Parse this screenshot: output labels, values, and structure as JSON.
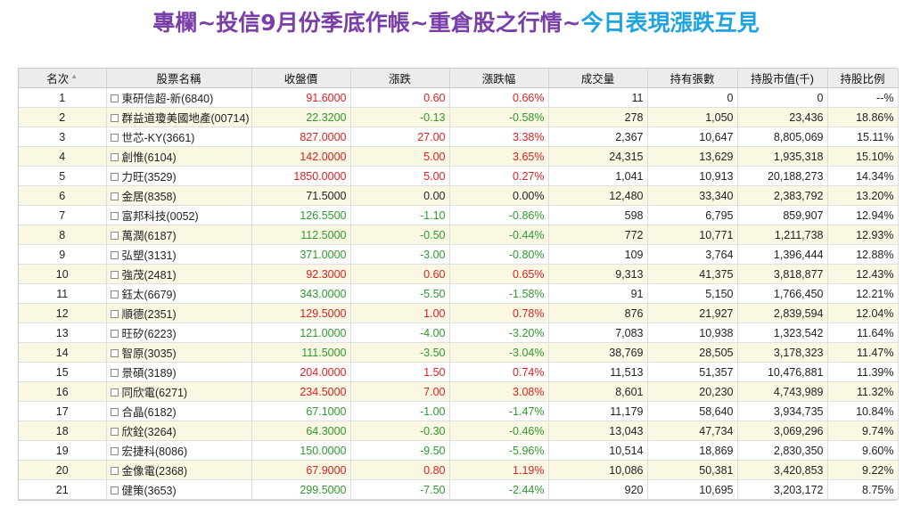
{
  "title": {
    "part1": "專欄~投信9月份季底作帳~重倉股之行情~",
    "part2": "今日表現漲跌互見"
  },
  "colors": {
    "title_purple": "#7a3ea8",
    "title_blue": "#1fa3e0",
    "up": "#e02020",
    "down": "#2e9a2e",
    "row_stripe": "#faf7e3"
  },
  "table": {
    "headers": [
      "名次",
      "股票名稱",
      "收盤價",
      "漲跌",
      "漲跌幅",
      "成交量",
      "持有張數",
      "持股市值(千)",
      "持股比例"
    ],
    "rows": [
      {
        "rank": "1",
        "name": "東研信超-新(6840)",
        "close": "91.6000",
        "change": "0.60",
        "pct": "0.66%",
        "volume": "11",
        "shares": "0",
        "value": "0",
        "ratio": "--%",
        "dir": "up"
      },
      {
        "rank": "2",
        "name": "群益道瓊美國地產(00714)",
        "close": "22.3200",
        "change": "-0.13",
        "pct": "-0.58%",
        "volume": "278",
        "shares": "1,050",
        "value": "23,436",
        "ratio": "18.86%",
        "dir": "down"
      },
      {
        "rank": "3",
        "name": "世芯-KY(3661)",
        "close": "827.0000",
        "change": "27.00",
        "pct": "3.38%",
        "volume": "2,367",
        "shares": "10,647",
        "value": "8,805,069",
        "ratio": "15.11%",
        "dir": "up"
      },
      {
        "rank": "4",
        "name": "創惟(6104)",
        "close": "142.0000",
        "change": "5.00",
        "pct": "3.65%",
        "volume": "24,315",
        "shares": "13,629",
        "value": "1,935,318",
        "ratio": "15.10%",
        "dir": "up"
      },
      {
        "rank": "5",
        "name": "力旺(3529)",
        "close": "1850.0000",
        "change": "5.00",
        "pct": "0.27%",
        "volume": "1,041",
        "shares": "10,913",
        "value": "20,188,273",
        "ratio": "14.34%",
        "dir": "up"
      },
      {
        "rank": "6",
        "name": "金居(8358)",
        "close": "71.5000",
        "change": "0.00",
        "pct": "0.00%",
        "volume": "12,480",
        "shares": "33,340",
        "value": "2,383,792",
        "ratio": "13.20%",
        "dir": "flat"
      },
      {
        "rank": "7",
        "name": "富邦科技(0052)",
        "close": "126.5500",
        "change": "-1.10",
        "pct": "-0.86%",
        "volume": "598",
        "shares": "6,795",
        "value": "859,907",
        "ratio": "12.94%",
        "dir": "down"
      },
      {
        "rank": "8",
        "name": "萬潤(6187)",
        "close": "112.5000",
        "change": "-0.50",
        "pct": "-0.44%",
        "volume": "772",
        "shares": "10,771",
        "value": "1,211,738",
        "ratio": "12.93%",
        "dir": "down"
      },
      {
        "rank": "9",
        "name": "弘塑(3131)",
        "close": "371.0000",
        "change": "-3.00",
        "pct": "-0.80%",
        "volume": "109",
        "shares": "3,764",
        "value": "1,396,444",
        "ratio": "12.88%",
        "dir": "down"
      },
      {
        "rank": "10",
        "name": "強茂(2481)",
        "close": "92.3000",
        "change": "0.60",
        "pct": "0.65%",
        "volume": "9,313",
        "shares": "41,375",
        "value": "3,818,877",
        "ratio": "12.43%",
        "dir": "up"
      },
      {
        "rank": "11",
        "name": "鈺太(6679)",
        "close": "343.0000",
        "change": "-5.50",
        "pct": "-1.58%",
        "volume": "91",
        "shares": "5,150",
        "value": "1,766,450",
        "ratio": "12.21%",
        "dir": "down"
      },
      {
        "rank": "12",
        "name": "順德(2351)",
        "close": "129.5000",
        "change": "1.00",
        "pct": "0.78%",
        "volume": "876",
        "shares": "21,927",
        "value": "2,839,594",
        "ratio": "12.04%",
        "dir": "up"
      },
      {
        "rank": "13",
        "name": "旺矽(6223)",
        "close": "121.0000",
        "change": "-4.00",
        "pct": "-3.20%",
        "volume": "7,083",
        "shares": "10,938",
        "value": "1,323,542",
        "ratio": "11.64%",
        "dir": "down"
      },
      {
        "rank": "14",
        "name": "智原(3035)",
        "close": "111.5000",
        "change": "-3.50",
        "pct": "-3.04%",
        "volume": "38,769",
        "shares": "28,505",
        "value": "3,178,323",
        "ratio": "11.47%",
        "dir": "down"
      },
      {
        "rank": "15",
        "name": "景碩(3189)",
        "close": "204.0000",
        "change": "1.50",
        "pct": "0.74%",
        "volume": "11,513",
        "shares": "51,357",
        "value": "10,476,881",
        "ratio": "11.39%",
        "dir": "up"
      },
      {
        "rank": "16",
        "name": "同欣電(6271)",
        "close": "234.5000",
        "change": "7.00",
        "pct": "3.08%",
        "volume": "8,601",
        "shares": "20,230",
        "value": "4,743,989",
        "ratio": "11.32%",
        "dir": "up"
      },
      {
        "rank": "17",
        "name": "合晶(6182)",
        "close": "67.1000",
        "change": "-1.00",
        "pct": "-1.47%",
        "volume": "11,179",
        "shares": "58,640",
        "value": "3,934,735",
        "ratio": "10.84%",
        "dir": "down"
      },
      {
        "rank": "18",
        "name": "欣銓(3264)",
        "close": "64.3000",
        "change": "-0.30",
        "pct": "-0.46%",
        "volume": "13,043",
        "shares": "47,734",
        "value": "3,069,296",
        "ratio": "9.74%",
        "dir": "down"
      },
      {
        "rank": "19",
        "name": "宏捷科(8086)",
        "close": "150.0000",
        "change": "-9.50",
        "pct": "-5.96%",
        "volume": "10,514",
        "shares": "18,869",
        "value": "2,830,350",
        "ratio": "9.60%",
        "dir": "down"
      },
      {
        "rank": "20",
        "name": "金像電(2368)",
        "close": "67.9000",
        "change": "0.80",
        "pct": "1.19%",
        "volume": "10,086",
        "shares": "50,381",
        "value": "3,420,853",
        "ratio": "9.22%",
        "dir": "up"
      },
      {
        "rank": "21",
        "name": "健策(3653)",
        "close": "299.5000",
        "change": "-7.50",
        "pct": "-2.44%",
        "volume": "920",
        "shares": "10,695",
        "value": "3,203,172",
        "ratio": "8.75%",
        "dir": "down"
      }
    ]
  }
}
